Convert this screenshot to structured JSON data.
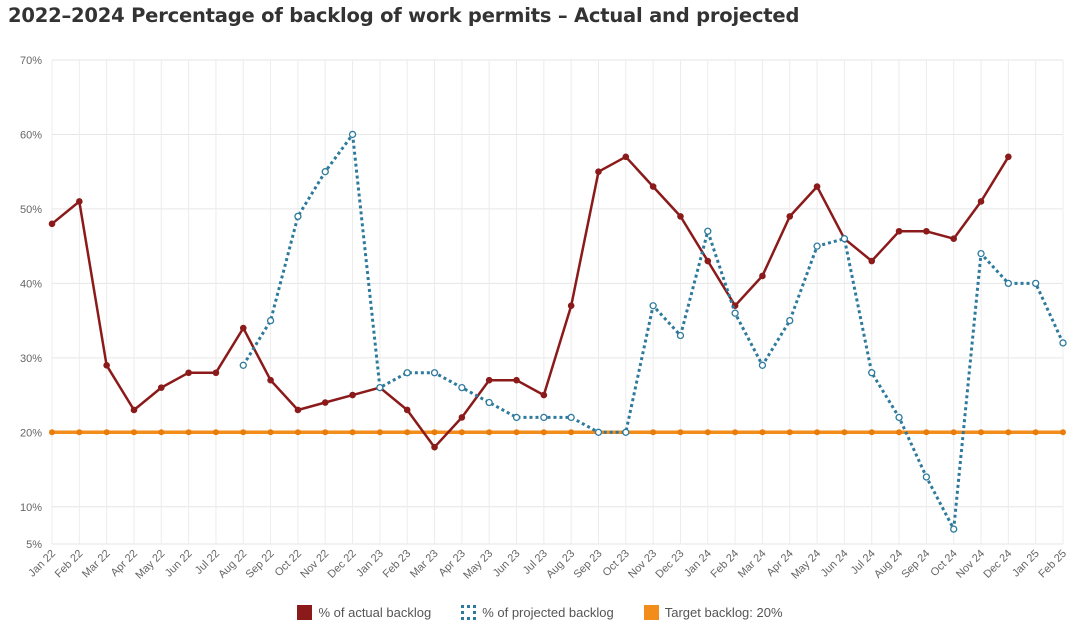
{
  "chart_data": {
    "type": "line",
    "title": "2022–2024 Percentage of backlog of work permits – Actual and projected",
    "xlabel": "",
    "ylabel": "",
    "ylim": [
      5,
      70
    ],
    "y_ticks": [
      5,
      10,
      20,
      30,
      40,
      50,
      60,
      70
    ],
    "y_tick_labels": [
      "5%",
      "10%",
      "20%",
      "30%",
      "40%",
      "50%",
      "60%",
      "70%"
    ],
    "categories": [
      "Jan 22",
      "Feb 22",
      "Mar 22",
      "Apr 22",
      "May 22",
      "Jun 22",
      "Jul 22",
      "Aug 22",
      "Sep 22",
      "Oct 22",
      "Nov 22",
      "Dec 22",
      "Jan 23",
      "Feb 23",
      "Mar 23",
      "Apr 23",
      "May 23",
      "Jun 23",
      "Jul 23",
      "Aug 23",
      "Sep 23",
      "Oct 23",
      "Nov 23",
      "Dec 23",
      "Jan 24",
      "Feb 24",
      "Mar 24",
      "Apr 24",
      "May 24",
      "Jun 24",
      "Jul 24",
      "Aug 24",
      "Sep 24",
      "Oct 24",
      "Nov 24",
      "Dec 24",
      "Jan 25",
      "Feb 25"
    ],
    "grid": true,
    "legend_position": "bottom",
    "series": [
      {
        "name": "% of actual backlog",
        "color": "#8b1a1a",
        "style": "solid",
        "values": [
          48,
          51,
          29,
          23,
          26,
          28,
          28,
          34,
          27,
          23,
          24,
          25,
          26,
          23,
          18,
          22,
          27,
          27,
          25,
          37,
          55,
          57,
          53,
          49,
          43,
          37,
          41,
          49,
          53,
          46,
          43,
          47,
          47,
          46,
          51,
          57,
          null,
          null
        ]
      },
      {
        "name": "% of projected backlog",
        "color": "#2e7a9c",
        "style": "dotted",
        "values": [
          null,
          null,
          null,
          null,
          null,
          null,
          null,
          29,
          35,
          49,
          55,
          60,
          26,
          28,
          28,
          26,
          24,
          22,
          22,
          22,
          20,
          20,
          37,
          33,
          47,
          36,
          29,
          35,
          45,
          46,
          28,
          22,
          14,
          7,
          44,
          40,
          40,
          32
        ]
      },
      {
        "name": "Target backlog: 20%",
        "color": "#f28c1b",
        "style": "solid",
        "values": [
          20,
          20,
          20,
          20,
          20,
          20,
          20,
          20,
          20,
          20,
          20,
          20,
          20,
          20,
          20,
          20,
          20,
          20,
          20,
          20,
          20,
          20,
          20,
          20,
          20,
          20,
          20,
          20,
          20,
          20,
          20,
          20,
          20,
          20,
          20,
          20,
          20,
          20
        ]
      }
    ]
  }
}
